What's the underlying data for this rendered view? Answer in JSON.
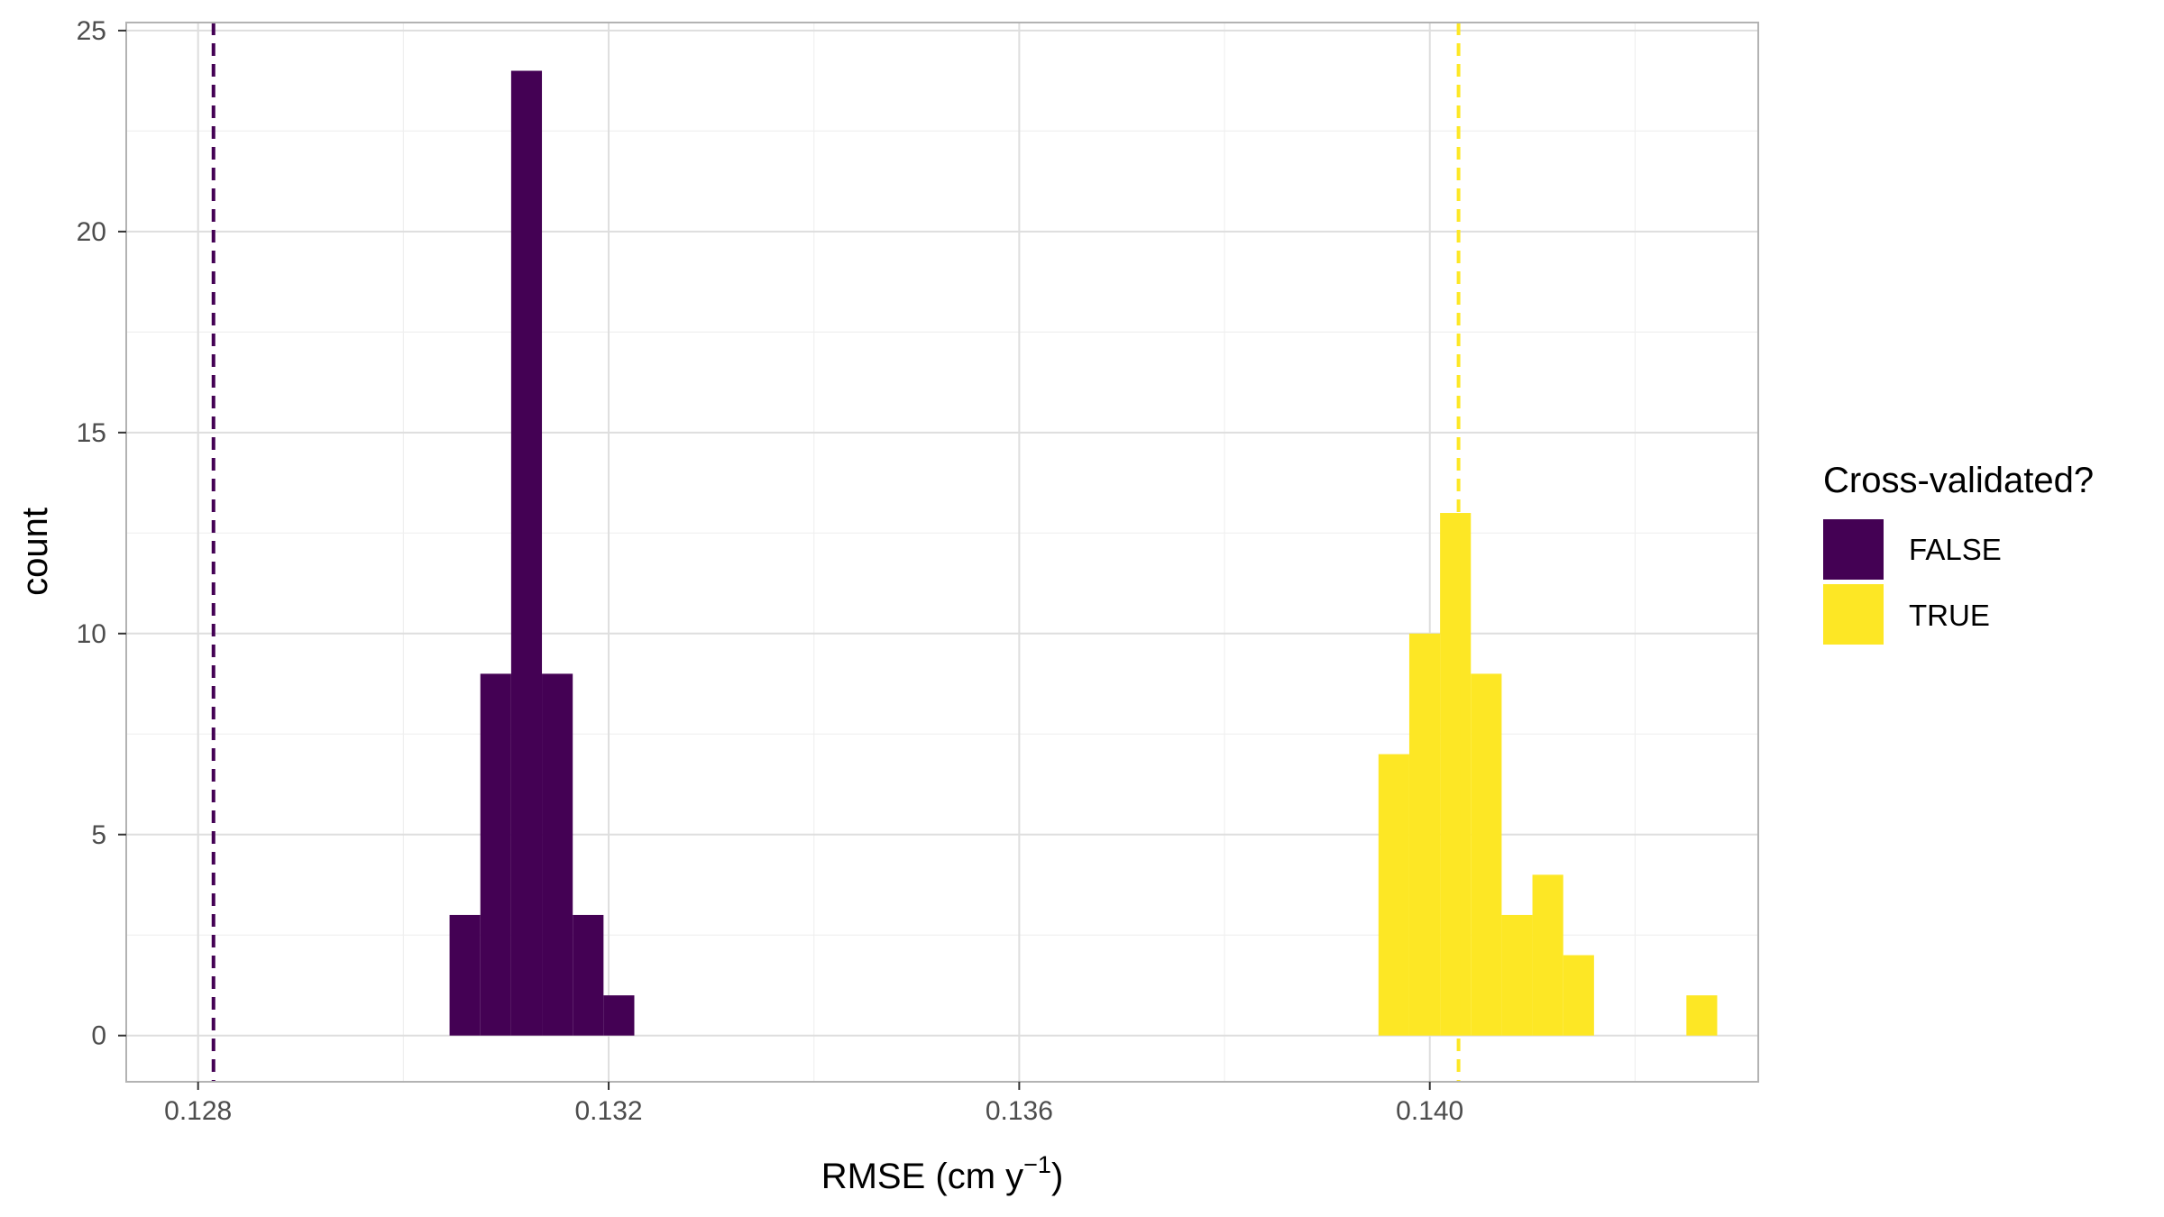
{
  "chart_data": {
    "type": "histogram",
    "xlabel": "RMSE (cm y",
    "xlabel_sup": "−1",
    "xlabel_suffix": ")",
    "ylabel": "count",
    "xlim": [
      0.1273,
      0.1432
    ],
    "ylim": [
      -1.15,
      25.2
    ],
    "x_ticks": [
      0.128,
      0.132,
      0.136,
      0.14
    ],
    "x_tick_labels": [
      "0.128",
      "0.132",
      "0.136",
      "0.140"
    ],
    "y_ticks": [
      0,
      5,
      10,
      15,
      20,
      25
    ],
    "y_tick_labels": [
      "0",
      "5",
      "10",
      "15",
      "20",
      "25"
    ],
    "grid": true,
    "bin_width": 0.0003,
    "legend": {
      "title": "Cross-validated?",
      "position": "right",
      "entries": [
        {
          "label": "FALSE",
          "color": "#440154"
        },
        {
          "label": "TRUE",
          "color": "#FDE725"
        }
      ]
    },
    "series": [
      {
        "name": "FALSE",
        "color": "#440154",
        "bins": [
          {
            "x0": 0.13045,
            "x1": 0.13075,
            "count": 3
          },
          {
            "x0": 0.13075,
            "x1": 0.13105,
            "count": 9
          },
          {
            "x0": 0.13105,
            "x1": 0.13135,
            "count": 24
          },
          {
            "x0": 0.13135,
            "x1": 0.13165,
            "count": 9
          },
          {
            "x0": 0.13165,
            "x1": 0.13195,
            "count": 3
          },
          {
            "x0": 0.13195,
            "x1": 0.13225,
            "count": 1
          }
        ],
        "reference_line": 0.12815
      },
      {
        "name": "TRUE",
        "color": "#FDE725",
        "bins": [
          {
            "x0": 0.1395,
            "x1": 0.1398,
            "count": 7
          },
          {
            "x0": 0.1398,
            "x1": 0.1401,
            "count": 10
          },
          {
            "x0": 0.1401,
            "x1": 0.1404,
            "count": 13
          },
          {
            "x0": 0.1404,
            "x1": 0.1407,
            "count": 9
          },
          {
            "x0": 0.1407,
            "x1": 0.141,
            "count": 3
          },
          {
            "x0": 0.141,
            "x1": 0.1413,
            "count": 4
          },
          {
            "x0": 0.1413,
            "x1": 0.1416,
            "count": 2
          },
          {
            "x0": 0.1425,
            "x1": 0.1428,
            "count": 1
          }
        ],
        "reference_line": 0.14028
      }
    ]
  }
}
